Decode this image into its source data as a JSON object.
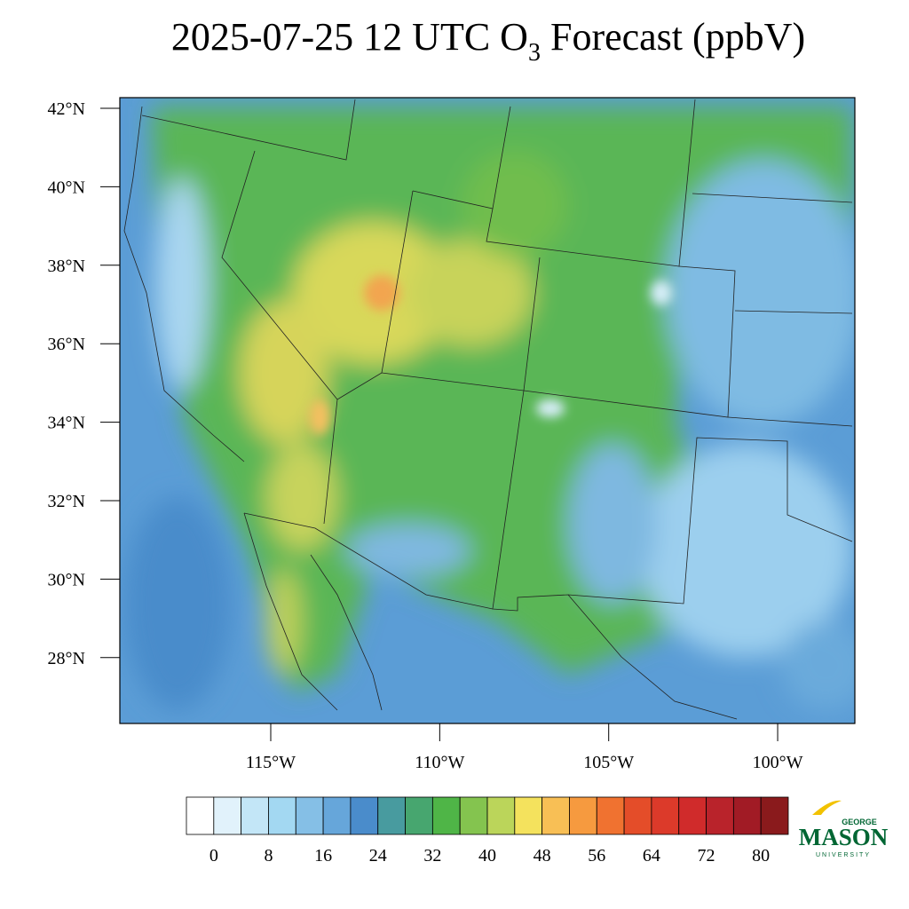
{
  "title": {
    "main": "2025-07-25 12 UTC O",
    "sub": "3",
    "rest": " Forecast (ppbV)"
  },
  "map": {
    "lat_ticks": [
      {
        "value": 42,
        "label": "42°N"
      },
      {
        "value": 40,
        "label": "40°N"
      },
      {
        "value": 38,
        "label": "38°N"
      },
      {
        "value": 36,
        "label": "36°N"
      },
      {
        "value": 34,
        "label": "34°N"
      },
      {
        "value": 32,
        "label": "32°N"
      },
      {
        "value": 30,
        "label": "30°N"
      },
      {
        "value": 28,
        "label": "28°N"
      }
    ],
    "lon_ticks": [
      {
        "value": -115,
        "label": "115°W"
      },
      {
        "value": -110,
        "label": "110°W"
      },
      {
        "value": -105,
        "label": "105°W"
      },
      {
        "value": -100,
        "label": "100°W"
      }
    ]
  },
  "colorbar": {
    "lim": [
      -4,
      84
    ],
    "ticks": [
      0,
      8,
      16,
      24,
      32,
      40,
      48,
      56,
      64,
      72,
      80
    ],
    "colors": [
      "#ffffff",
      "#e1f2fb",
      "#c3e6f7",
      "#a3d8f2",
      "#85bfe6",
      "#66a6da",
      "#4a8ccb",
      "#489b9f",
      "#47a66f",
      "#4fb547",
      "#84c44f",
      "#bbd55a",
      "#f4e25d",
      "#f8bf55",
      "#f69a3f",
      "#f07230",
      "#e44d29",
      "#dc3a2a",
      "#d02b2b",
      "#b9232b",
      "#a11b25",
      "#8a1a1c"
    ]
  },
  "logo": {
    "top": "GEORGE",
    "main": "MASON",
    "bottom": "UNIVERSITY"
  }
}
